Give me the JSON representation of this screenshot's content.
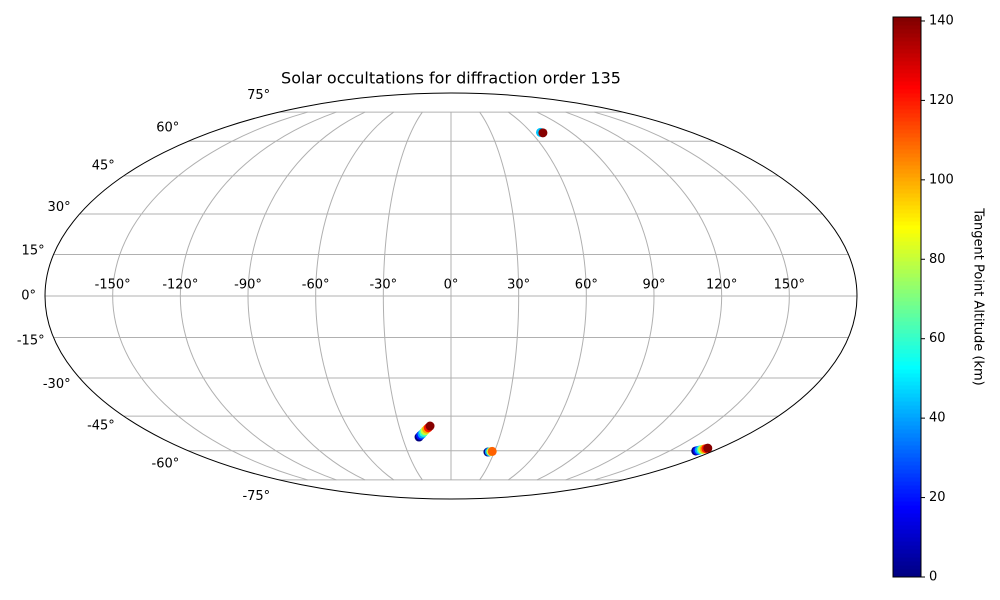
{
  "chart_data": {
    "type": "scatter",
    "projection": "mollweide",
    "title": "Solar occultations for diffraction order 135",
    "x": [
      67,
      68.5,
      -19.7,
      -18.6,
      -17.5,
      -16.4,
      -15.4,
      -14.3,
      -13.2,
      -12.1,
      25.6,
      26.5,
      27.5,
      28.4,
      168,
      168.6,
      169.1,
      169.7,
      170.3,
      170.9,
      171.4,
      172
    ],
    "values": [
      64.2,
      64,
      -53.8,
      -53.1,
      -52.5,
      -51.8,
      -51.1,
      -50.4,
      -49.8,
      -49.1,
      -60.6,
      -60.5,
      -60.4,
      -60.3,
      -60.1,
      -59.9,
      -59.7,
      -59.5,
      -59.4,
      -59.2,
      -59,
      -58.8
    ],
    "c": [
      45,
      140,
      0,
      20,
      40,
      60,
      80,
      100,
      120,
      140,
      0,
      40,
      80,
      110,
      0,
      20,
      40,
      60,
      80,
      100,
      120,
      140
    ],
    "colormap": "jet",
    "xlim": [
      -180,
      180
    ],
    "ylim": [
      -90,
      90
    ],
    "xticks": [
      {
        "value": -150,
        "label": "-150°"
      },
      {
        "value": -120,
        "label": "-120°"
      },
      {
        "value": -90,
        "label": "-90°"
      },
      {
        "value": -60,
        "label": "-60°"
      },
      {
        "value": -30,
        "label": "-30°"
      },
      {
        "value": 0,
        "label": "0°"
      },
      {
        "value": 30,
        "label": "30°"
      },
      {
        "value": 60,
        "label": "60°"
      },
      {
        "value": 90,
        "label": "90°"
      },
      {
        "value": 120,
        "label": "120°"
      },
      {
        "value": 150,
        "label": "150°"
      }
    ],
    "yticks": [
      {
        "value": -75,
        "label": "-75°"
      },
      {
        "value": -60,
        "label": "-60°"
      },
      {
        "value": -45,
        "label": "-45°"
      },
      {
        "value": -30,
        "label": "-30°"
      },
      {
        "value": -15,
        "label": "-15°"
      },
      {
        "value": 0,
        "label": "0°"
      },
      {
        "value": 15,
        "label": "15°"
      },
      {
        "value": 30,
        "label": "30°"
      },
      {
        "value": 45,
        "label": "45°"
      },
      {
        "value": 60,
        "label": "60°"
      },
      {
        "value": 75,
        "label": "75°"
      }
    ],
    "grid": true,
    "colorbar": {
      "label": "Tangent Point Altitude (km)",
      "lim": [
        0,
        141
      ],
      "ticks": [
        0,
        20,
        40,
        60,
        80,
        100,
        120,
        140
      ]
    }
  }
}
